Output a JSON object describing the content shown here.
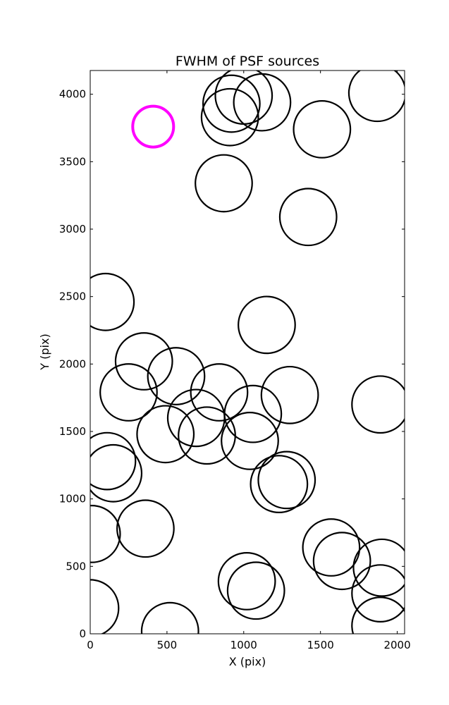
{
  "chart_data": {
    "type": "scatter",
    "title": "FWHM of PSF sources",
    "xlabel": "X (pix)",
    "ylabel": "Y (pix)",
    "xlim": [
      0,
      2048
    ],
    "ylim": [
      0,
      4176
    ],
    "xticks": [
      "0",
      "500",
      "1000",
      "1500",
      "2000"
    ],
    "xtick_values": [
      0,
      500,
      1000,
      1500,
      2000
    ],
    "yticks": [
      "0",
      "500",
      "1000",
      "1500",
      "2000",
      "2500",
      "3000",
      "3500",
      "4000"
    ],
    "ytick_values": [
      0,
      500,
      1000,
      1500,
      2000,
      2500,
      3000,
      3500,
      4000
    ],
    "grid": false,
    "marker": "open-circle",
    "marker_radius_pix": 185,
    "series": [
      {
        "color": "#000000",
        "points": [
          {
            "x": 920,
            "y": 3930
          },
          {
            "x": 1000,
            "y": 3990
          },
          {
            "x": 1120,
            "y": 3940
          },
          {
            "x": 910,
            "y": 3830
          },
          {
            "x": 1870,
            "y": 4010
          },
          {
            "x": 1510,
            "y": 3740
          },
          {
            "x": 870,
            "y": 3340
          },
          {
            "x": 1420,
            "y": 3090
          },
          {
            "x": 100,
            "y": 2460
          },
          {
            "x": 1150,
            "y": 2290
          },
          {
            "x": 350,
            "y": 2020
          },
          {
            "x": 560,
            "y": 1910
          },
          {
            "x": 250,
            "y": 1790
          },
          {
            "x": 840,
            "y": 1790
          },
          {
            "x": 1300,
            "y": 1770
          },
          {
            "x": 1890,
            "y": 1700
          },
          {
            "x": 690,
            "y": 1600
          },
          {
            "x": 1060,
            "y": 1630
          },
          {
            "x": 490,
            "y": 1480
          },
          {
            "x": 760,
            "y": 1470
          },
          {
            "x": 1040,
            "y": 1430
          },
          {
            "x": 110,
            "y": 1280
          },
          {
            "x": 150,
            "y": 1190
          },
          {
            "x": 1280,
            "y": 1140
          },
          {
            "x": 1230,
            "y": 1110
          },
          {
            "x": 10,
            "y": 740
          },
          {
            "x": 360,
            "y": 780
          },
          {
            "x": 1570,
            "y": 640
          },
          {
            "x": 1640,
            "y": 540
          },
          {
            "x": 1900,
            "y": 490
          },
          {
            "x": 1020,
            "y": 390
          },
          {
            "x": 1080,
            "y": 320
          },
          {
            "x": 1890,
            "y": 300
          },
          {
            "x": 1890,
            "y": 60
          },
          {
            "x": 0,
            "y": 190
          },
          {
            "x": 520,
            "y": 20
          }
        ]
      },
      {
        "color": "#ff00ff",
        "points": [
          {
            "x": 410,
            "y": 3760
          }
        ]
      }
    ]
  }
}
